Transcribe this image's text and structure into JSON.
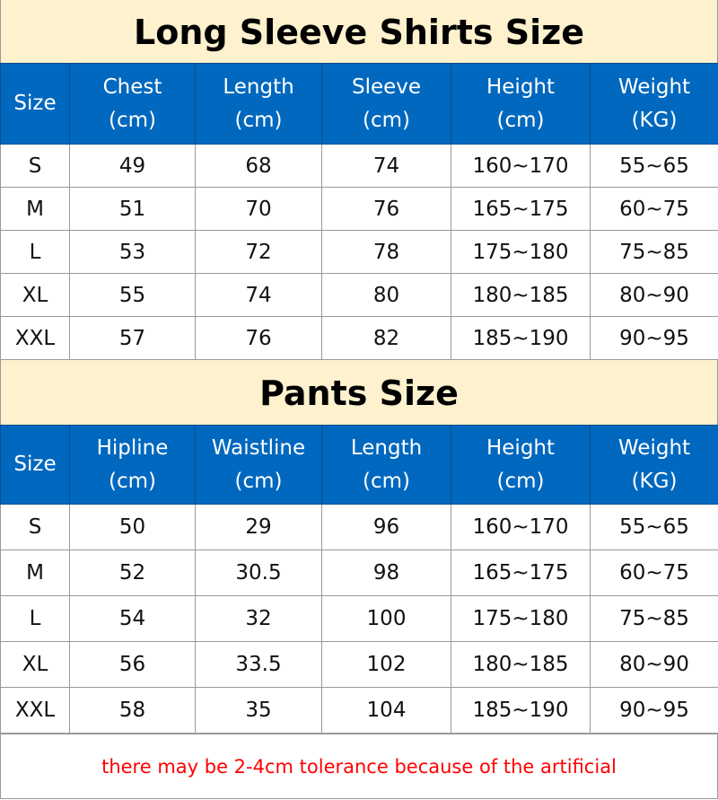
{
  "colors": {
    "header_bg": "#0068BE",
    "title_bg": "#FEF1CE",
    "note": "#FF0000"
  },
  "shirts": {
    "title": "Long Sleeve Shirts Size",
    "headers": [
      [
        "Size",
        ""
      ],
      [
        "Chest",
        "(cm)"
      ],
      [
        "Length",
        "(cm)"
      ],
      [
        "Sleeve",
        "(cm)"
      ],
      [
        "Height",
        "(cm)"
      ],
      [
        "Weight",
        "(KG)"
      ]
    ],
    "rows": [
      [
        "S",
        "49",
        "68",
        "74",
        "160~170",
        "55~65"
      ],
      [
        "M",
        "51",
        "70",
        "76",
        "165~175",
        "60~75"
      ],
      [
        "L",
        "53",
        "72",
        "78",
        "175~180",
        "75~85"
      ],
      [
        "XL",
        "55",
        "74",
        "80",
        "180~185",
        "80~90"
      ],
      [
        "XXL",
        "57",
        "76",
        "82",
        "185~190",
        "90~95"
      ]
    ]
  },
  "pants": {
    "title": "Pants Size",
    "headers": [
      [
        "Size",
        ""
      ],
      [
        "Hipline",
        "(cm)"
      ],
      [
        "Waistline",
        "(cm)"
      ],
      [
        "Length",
        "(cm)"
      ],
      [
        "Height",
        "(cm)"
      ],
      [
        "Weight",
        "(KG)"
      ]
    ],
    "rows": [
      [
        "S",
        "50",
        "29",
        "96",
        "160~170",
        "55~65"
      ],
      [
        "M",
        "52",
        "30.5",
        "98",
        "165~175",
        "60~75"
      ],
      [
        "L",
        "54",
        "32",
        "100",
        "175~180",
        "75~85"
      ],
      [
        "XL",
        "56",
        "33.5",
        "102",
        "180~185",
        "80~90"
      ],
      [
        "XXL",
        "58",
        "35",
        "104",
        "185~190",
        "90~95"
      ]
    ]
  },
  "note": "there may be 2-4cm tolerance because of the artificial"
}
